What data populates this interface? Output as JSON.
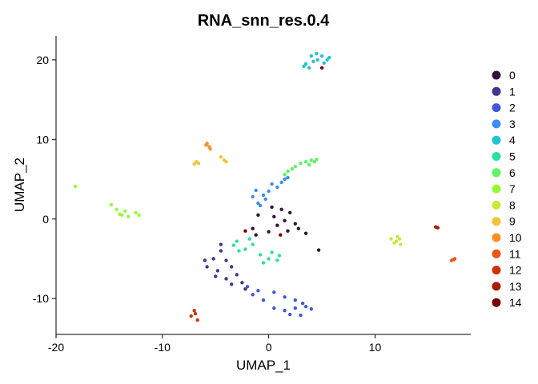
{
  "chart_data": {
    "type": "scatter",
    "title": "RNA_snn_res.0.4",
    "xlabel": "UMAP_1",
    "ylabel": "UMAP_2",
    "xlim": [
      -20,
      19
    ],
    "ylim": [
      -14.5,
      23
    ],
    "xticks": [
      -20,
      -10,
      0,
      10
    ],
    "yticks": [
      -10,
      0,
      10,
      20
    ],
    "legend_position": "right",
    "series": [
      {
        "name": "0",
        "color": "#30123b",
        "points": [
          [
            0.3,
            1.5
          ],
          [
            1.2,
            1.2
          ],
          [
            2.0,
            0.8
          ],
          [
            0.5,
            0.3
          ],
          [
            1.5,
            -0.2
          ],
          [
            2.5,
            -0.6
          ],
          [
            0.8,
            -0.8
          ],
          [
            1.8,
            -1.5
          ],
          [
            -1.0,
            0.5
          ],
          [
            -1.5,
            -1.2
          ],
          [
            -1.2,
            -2.0
          ],
          [
            2.8,
            -1.2
          ],
          [
            3.5,
            -1.8
          ],
          [
            0.0,
            -1.6
          ],
          [
            4.7,
            -3.9
          ]
        ]
      },
      {
        "name": "1",
        "color": "#3e378f",
        "points": [
          [
            -4.5,
            -4.0
          ],
          [
            -5.2,
            -5.0
          ],
          [
            -4.0,
            -5.2
          ],
          [
            -5.8,
            -6.0
          ],
          [
            -4.8,
            -6.5
          ],
          [
            -3.5,
            -6.0
          ],
          [
            -5.0,
            -7.2
          ],
          [
            -4.0,
            -7.5
          ],
          [
            -3.0,
            -7.0
          ],
          [
            -2.5,
            -8.0
          ],
          [
            -3.5,
            -8.2
          ],
          [
            -2.2,
            -8.8
          ],
          [
            -6.0,
            -5.2
          ],
          [
            -4.5,
            -3.2
          ]
        ]
      },
      {
        "name": "2",
        "color": "#4057d8",
        "points": [
          [
            -2.0,
            -8.5
          ],
          [
            -1.0,
            -9.0
          ],
          [
            0.5,
            -9.2
          ],
          [
            1.5,
            -9.8
          ],
          [
            2.5,
            -10.2
          ],
          [
            3.2,
            -10.6
          ],
          [
            0.5,
            -11.2
          ],
          [
            1.5,
            -11.5
          ],
          [
            2.5,
            -11.2
          ],
          [
            3.5,
            -11.0
          ],
          [
            4.0,
            -11.3
          ],
          [
            2.0,
            -12.0
          ],
          [
            3.0,
            -12.1
          ],
          [
            -1.5,
            -9.5
          ],
          [
            -0.5,
            -10.2
          ]
        ]
      },
      {
        "name": "3",
        "color": "#3a8df2",
        "points": [
          [
            -1.0,
            2.0
          ],
          [
            -1.5,
            2.8
          ],
          [
            -0.5,
            3.0
          ],
          [
            0.0,
            3.5
          ],
          [
            0.8,
            4.0
          ],
          [
            1.2,
            4.6
          ],
          [
            1.8,
            5.2
          ],
          [
            -1.2,
            3.6
          ],
          [
            0.3,
            4.4
          ],
          [
            -0.3,
            2.5
          ],
          [
            -0.8,
            1.7
          ],
          [
            1.5,
            5.0
          ]
        ]
      },
      {
        "name": "4",
        "color": "#22c3d4",
        "points": [
          [
            3.5,
            19.5
          ],
          [
            4.0,
            20.5
          ],
          [
            4.5,
            20.8
          ],
          [
            5.0,
            20.5
          ],
          [
            5.5,
            20.0
          ],
          [
            4.2,
            19.8
          ],
          [
            3.8,
            19.0
          ],
          [
            5.2,
            19.6
          ],
          [
            4.6,
            20.0
          ],
          [
            3.3,
            19.2
          ],
          [
            5.7,
            20.3
          ]
        ]
      },
      {
        "name": "5",
        "color": "#27e39b",
        "points": [
          [
            -1.5,
            -3.2
          ],
          [
            -2.2,
            -3.8
          ],
          [
            -3.0,
            -2.8
          ],
          [
            -0.8,
            -4.5
          ],
          [
            0.0,
            -5.0
          ],
          [
            0.8,
            -5.2
          ],
          [
            -0.5,
            -5.5
          ],
          [
            0.3,
            -4.2
          ],
          [
            -2.8,
            -4.0
          ],
          [
            -1.8,
            -2.5
          ],
          [
            1.0,
            -4.6
          ],
          [
            -3.3,
            -3.3
          ]
        ]
      },
      {
        "name": "6",
        "color": "#5df563",
        "points": [
          [
            1.8,
            6.0
          ],
          [
            2.5,
            6.6
          ],
          [
            3.0,
            7.0
          ],
          [
            3.5,
            7.2
          ],
          [
            4.0,
            7.4
          ],
          [
            4.5,
            7.5
          ],
          [
            2.2,
            6.3
          ],
          [
            3.8,
            6.8
          ],
          [
            4.3,
            7.2
          ],
          [
            1.5,
            5.6
          ]
        ]
      },
      {
        "name": "7",
        "color": "#95fb37",
        "points": [
          [
            -18.2,
            4.1
          ],
          [
            -14.8,
            1.8
          ],
          [
            -14.3,
            1.2
          ],
          [
            -13.8,
            0.5
          ],
          [
            -13.5,
            1.0
          ],
          [
            -12.5,
            0.8
          ],
          [
            -12.2,
            0.5
          ],
          [
            -13.2,
            0.3
          ],
          [
            -14.0,
            0.6
          ]
        ]
      },
      {
        "name": "8",
        "color": "#cde73a",
        "points": [
          [
            11.5,
            -2.5
          ],
          [
            12.0,
            -2.8
          ],
          [
            12.3,
            -2.5
          ],
          [
            11.8,
            -3.0
          ],
          [
            12.1,
            -2.2
          ],
          [
            12.4,
            -3.2
          ]
        ]
      },
      {
        "name": "9",
        "color": "#f2c239",
        "points": [
          [
            -4.5,
            7.8
          ],
          [
            -4.2,
            7.4
          ],
          [
            -6.8,
            7.2
          ],
          [
            -7.0,
            6.9
          ],
          [
            -6.6,
            7.0
          ],
          [
            -4.0,
            7.2
          ]
        ]
      },
      {
        "name": "10",
        "color": "#fb8f24",
        "points": [
          [
            -5.8,
            9.5
          ],
          [
            -5.6,
            9.1
          ],
          [
            -5.9,
            9.3
          ],
          [
            -5.5,
            8.8
          ]
        ]
      },
      {
        "name": "11",
        "color": "#ec5513",
        "points": [
          [
            17.5,
            -5.0
          ],
          [
            17.2,
            -5.2
          ],
          [
            17.4,
            -5.1
          ]
        ]
      },
      {
        "name": "12",
        "color": "#d23105",
        "points": [
          [
            -7.0,
            -11.5
          ],
          [
            -7.3,
            -12.2
          ],
          [
            -6.7,
            -12.7
          ],
          [
            -6.9,
            -11.9
          ]
        ]
      },
      {
        "name": "13",
        "color": "#a81c01",
        "points": [
          [
            15.7,
            -1.0
          ],
          [
            15.9,
            -1.1
          ]
        ]
      },
      {
        "name": "14",
        "color": "#7a0403",
        "points": [
          [
            5.0,
            19.0
          ],
          [
            1.1,
            -2.0
          ],
          [
            -2.2,
            -1.5
          ]
        ]
      }
    ]
  }
}
